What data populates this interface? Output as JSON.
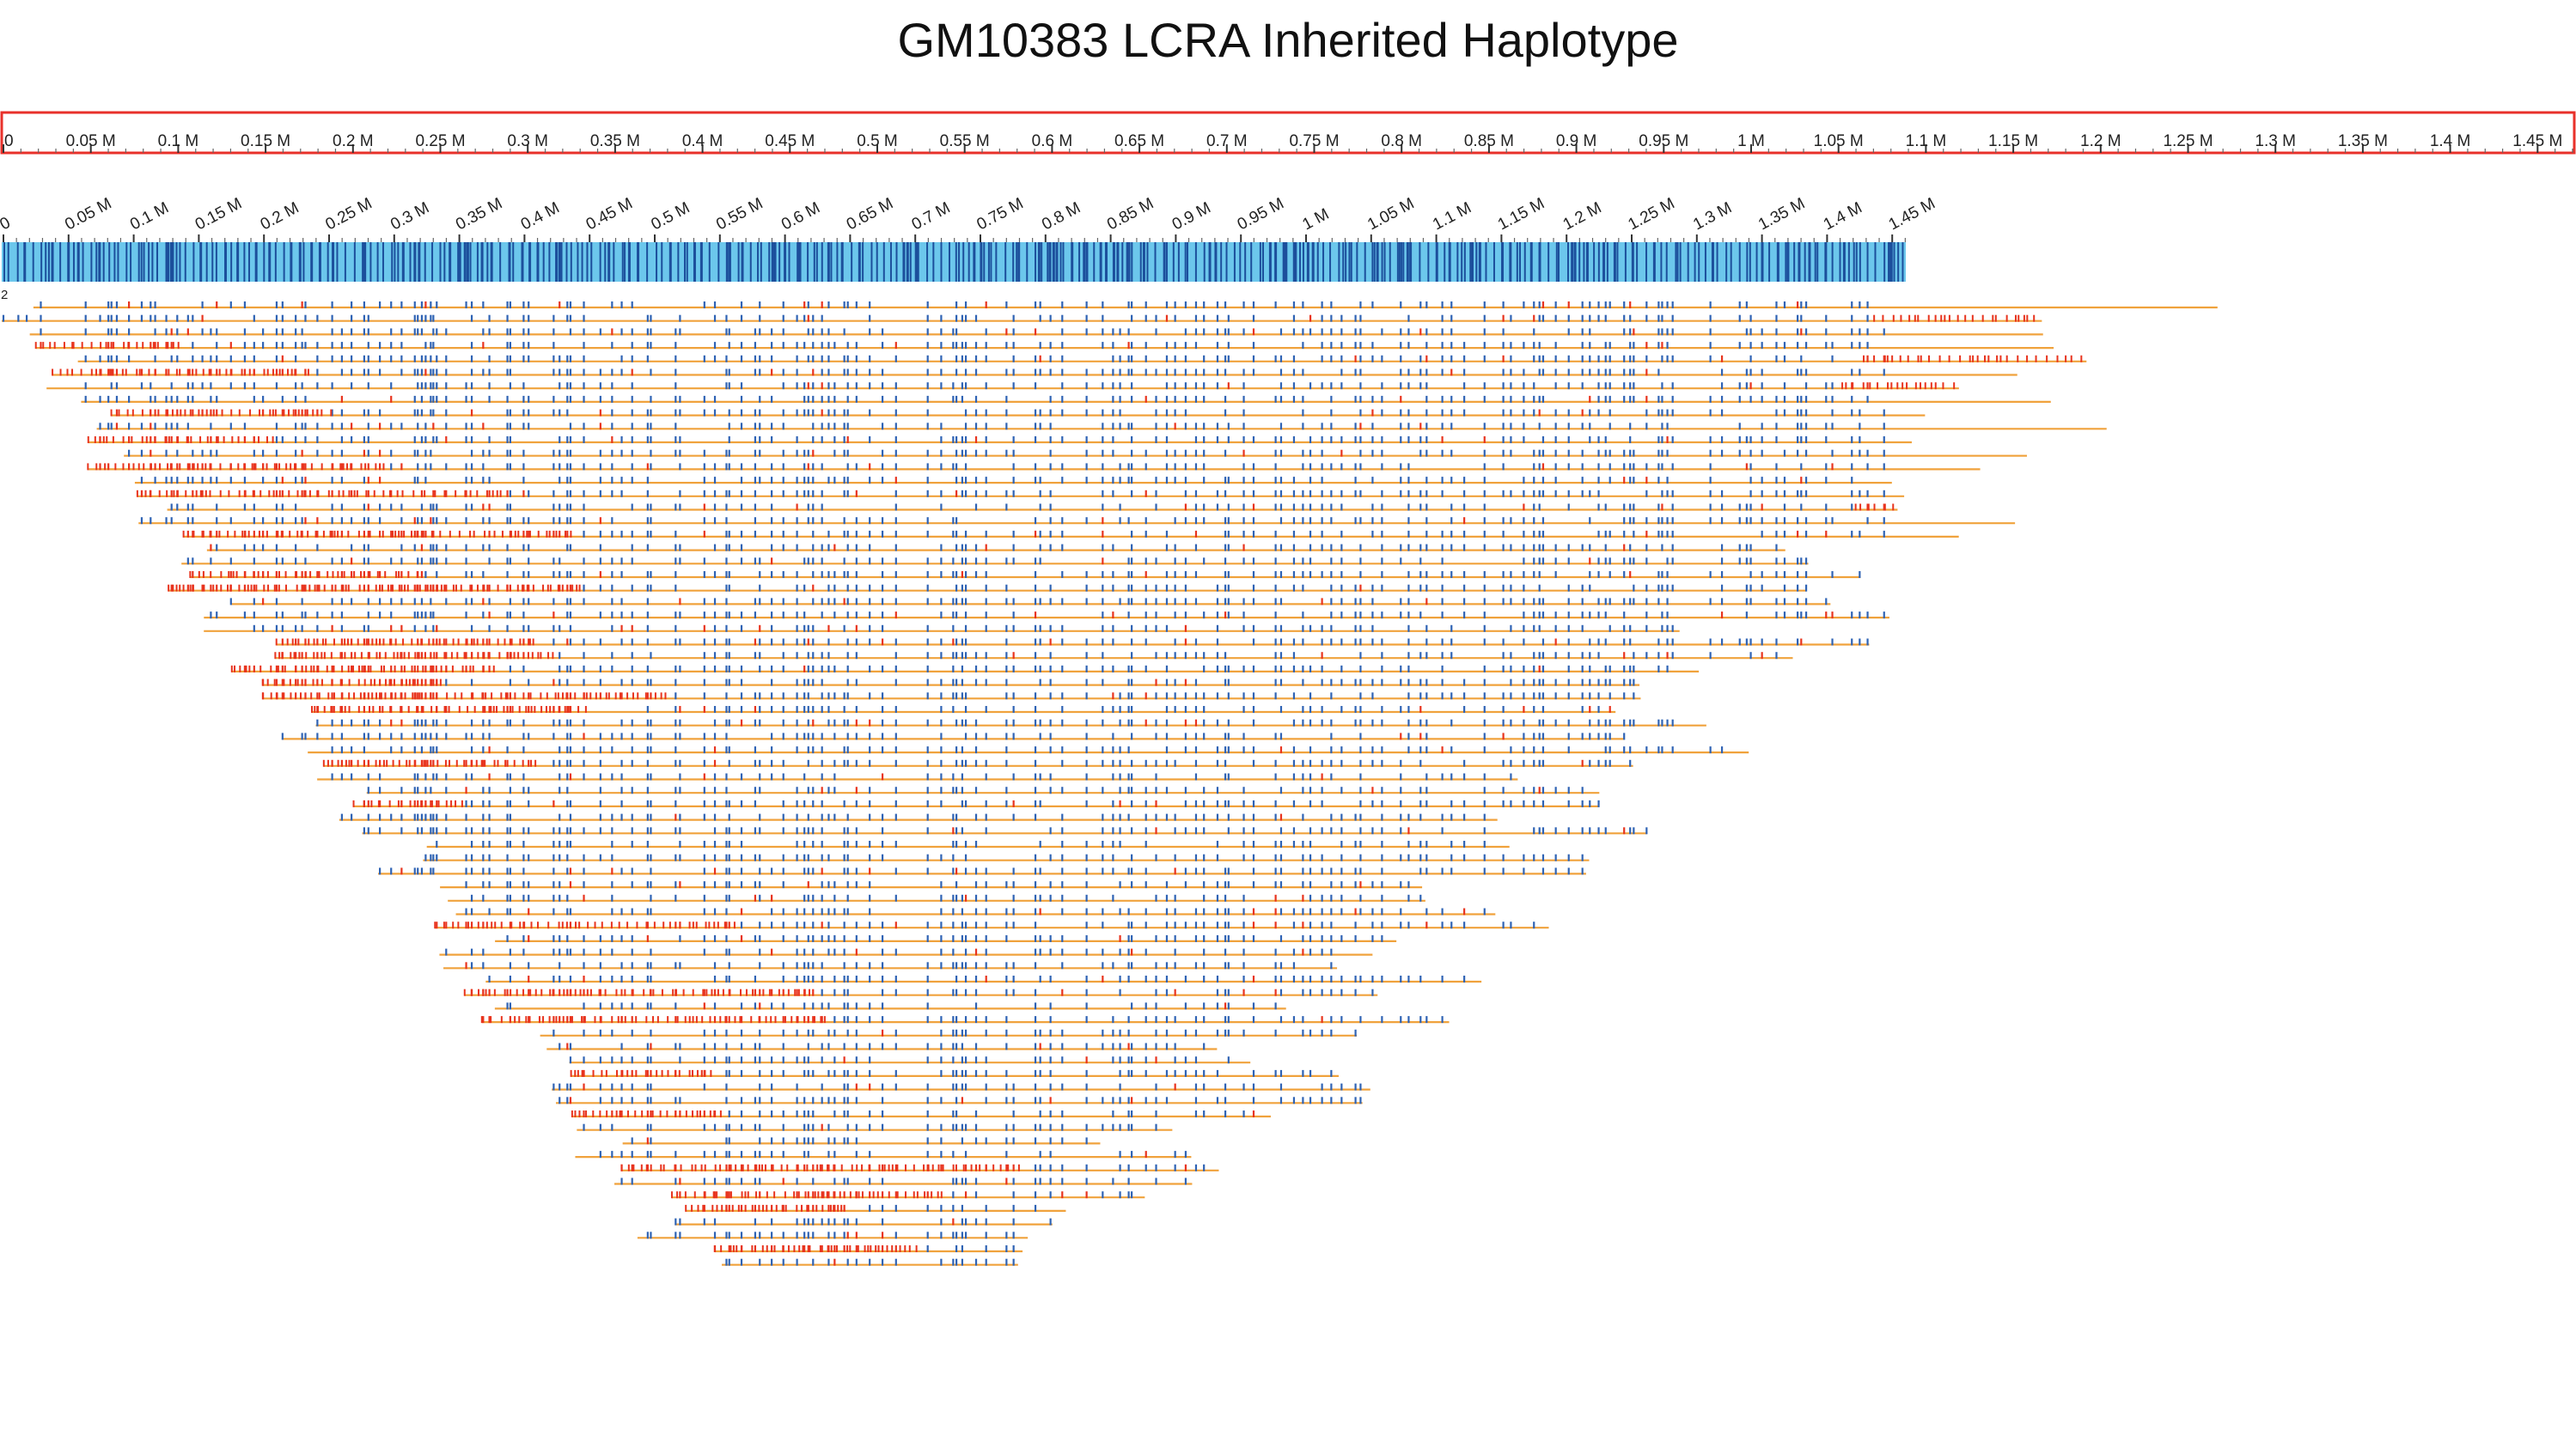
{
  "title": "GM10383 LCRA Inherited Haplotype",
  "colors": {
    "ruler_border": "#e8302a",
    "ideogram_fill": "#6cc7ec",
    "ideogram_marks": "#1c4f9c",
    "molecule_line": "#f0a23c",
    "match_mark": "#2f63b4",
    "mismatch_mark": "#e8341e",
    "text": "#111111"
  },
  "reference_ruler": {
    "unit": "M",
    "labels": [
      "0",
      "0.05 M",
      "0.1 M",
      "0.15 M",
      "0.2 M",
      "0.25 M",
      "0.3 M",
      "0.35 M",
      "0.4 M",
      "0.45 M",
      "0.5 M",
      "0.55 M",
      "0.6 M",
      "0.65 M",
      "0.7 M",
      "0.75 M",
      "0.8 M",
      "0.85 M",
      "0.9 M",
      "0.95 M",
      "1 M",
      "1.05 M",
      "1.1 M",
      "1.15 M",
      "1.2 M",
      "1.25 M",
      "1.3 M",
      "1.35 M",
      "1.4 M",
      "1.45 M"
    ]
  },
  "haplotype_map": {
    "track_label": "2",
    "labels": [
      "0",
      "0.05 M",
      "0.1 M",
      "0.15 M",
      "0.2 M",
      "0.25 M",
      "0.3 M",
      "0.35 M",
      "0.4 M",
      "0.45 M",
      "0.5 M",
      "0.55 M",
      "0.6 M",
      "0.65 M",
      "0.7 M",
      "0.75 M",
      "0.8 M",
      "0.85 M",
      "0.9 M",
      "0.95 M",
      "1 M",
      "1.05 M",
      "1.1 M",
      "1.15 M",
      "1.2 M",
      "1.25 M",
      "1.3 M",
      "1.35 M",
      "1.4 M",
      "1.45 M"
    ]
  }
}
